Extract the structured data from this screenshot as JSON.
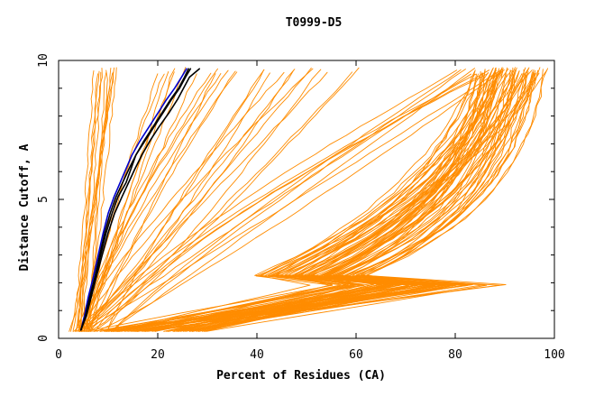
{
  "chart_data": {
    "type": "line",
    "title": "T0999-D5",
    "xlabel": "Percent of Residues (CA)",
    "ylabel": "Distance Cutoff, A",
    "xlim": [
      0,
      100
    ],
    "ylim": [
      0,
      10
    ],
    "x_ticks": [
      0,
      20,
      40,
      60,
      80,
      100
    ],
    "y_ticks": [
      0,
      5,
      10
    ],
    "grid": false,
    "colors": {
      "background_series": "#ff8c00",
      "highlight_primary": "#0000cc",
      "highlight_secondary": "#000000",
      "axes": "#000000"
    },
    "highlighted_series": [
      {
        "name": "highlight-blue",
        "color": "#0000cc",
        "x": [
          4.5,
          5.2,
          6.0,
          7.0,
          8.0,
          9.0,
          10.0,
          11.2,
          12.4,
          13.6,
          14.8,
          16.4,
          18.2,
          20.0,
          21.8,
          23.4,
          24.8,
          25.8
        ],
        "y": [
          0.3,
          0.8,
          1.5,
          2.2,
          3.0,
          3.8,
          4.5,
          5.1,
          5.6,
          6.1,
          6.6,
          7.1,
          7.6,
          8.1,
          8.6,
          9.0,
          9.4,
          9.7
        ]
      },
      {
        "name": "highlight-black-1",
        "color": "#000000",
        "x": [
          4.5,
          5.4,
          6.3,
          7.3,
          8.3,
          9.3,
          10.4,
          11.6,
          12.9,
          14.2,
          15.6,
          17.2,
          19.0,
          20.8,
          22.6,
          24.2,
          25.4,
          26.2
        ],
        "y": [
          0.3,
          0.8,
          1.5,
          2.2,
          3.0,
          3.8,
          4.5,
          5.1,
          5.6,
          6.1,
          6.6,
          7.1,
          7.6,
          8.1,
          8.6,
          9.0,
          9.4,
          9.7
        ]
      },
      {
        "name": "highlight-black-2",
        "color": "#000000",
        "x": [
          4.5,
          5.6,
          6.6,
          7.6,
          8.8,
          10.0,
          11.3,
          12.8,
          14.1,
          15.4,
          16.8,
          18.4,
          20.2,
          22.2,
          24.0,
          25.2,
          26.4,
          28.4
        ],
        "y": [
          0.3,
          0.8,
          1.5,
          2.2,
          3.0,
          3.8,
          4.5,
          5.1,
          5.6,
          6.1,
          6.6,
          7.1,
          7.6,
          8.1,
          8.6,
          9.0,
          9.4,
          9.7
        ]
      },
      {
        "name": "highlight-black-3",
        "color": "#000000",
        "x": [
          4.5,
          5.5,
          6.5,
          7.4,
          8.5,
          9.6,
          10.8,
          12.0,
          13.6,
          14.6,
          15.6,
          17.4,
          19.2,
          21.0,
          22.8,
          24.4,
          25.6,
          26.6
        ],
        "y": [
          0.3,
          0.8,
          1.5,
          2.2,
          3.0,
          3.8,
          4.5,
          5.1,
          5.6,
          6.1,
          6.6,
          7.1,
          7.6,
          8.1,
          8.6,
          9.0,
          9.4,
          9.7
        ]
      }
    ],
    "background_series_groups": [
      {
        "name": "steep-near-vertical",
        "count": 12,
        "x_at_y0": [
          2,
          6
        ],
        "x_at_y10": [
          6,
          12
        ]
      },
      {
        "name": "moderate-slope",
        "count": 14,
        "x_at_y0": [
          3,
          7
        ],
        "x_at_y10": [
          14,
          36
        ]
      },
      {
        "name": "mid-range",
        "count": 12,
        "x_at_y0": [
          3,
          10
        ],
        "x_at_y10": [
          40,
          66
        ]
      },
      {
        "name": "wide-diagonal",
        "count": 10,
        "x_at_y0": [
          4,
          12
        ],
        "x_at_y10": [
          80,
          92
        ]
      },
      {
        "name": "knee-shaped-bundle",
        "count": 70,
        "x_at_y0": [
          5,
          30
        ],
        "x_at_y10": [
          84,
          99.5
        ]
      }
    ]
  }
}
